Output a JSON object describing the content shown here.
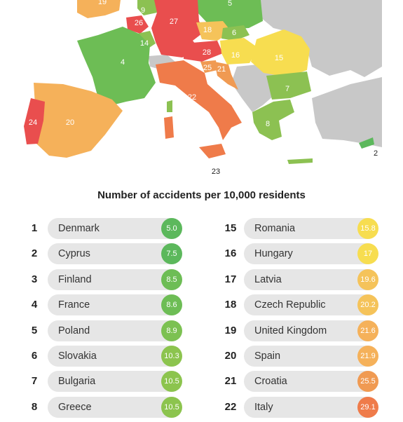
{
  "title": "Number of accidents per 10,000 residents",
  "colors": {
    "best": "#5cb85c",
    "good": "#8cc152",
    "mid": "#f6d743",
    "warn": "#f5b15a",
    "bad": "#ef8c4f",
    "worst": "#e94e4e",
    "nodata": "#c8c8c8",
    "sea": "#ffffff"
  },
  "map": {
    "labels": [
      "19",
      "9",
      "5",
      "27",
      "26",
      "18",
      "6",
      "14",
      "28",
      "16",
      "15",
      "4",
      "25",
      "21",
      "7",
      "22",
      "24",
      "20",
      "8",
      "2",
      "23"
    ]
  },
  "rankings_left": [
    {
      "rank": "1",
      "country": "Denmark",
      "value": "5.0",
      "color": "#5cb85c"
    },
    {
      "rank": "2",
      "country": "Cyprus",
      "value": "7.5",
      "color": "#5cb85c"
    },
    {
      "rank": "3",
      "country": "Finland",
      "value": "8.5",
      "color": "#6dbd55"
    },
    {
      "rank": "4",
      "country": "France",
      "value": "8.6",
      "color": "#6dbd55"
    },
    {
      "rank": "5",
      "country": "Poland",
      "value": "8.9",
      "color": "#7cc152"
    },
    {
      "rank": "6",
      "country": "Slovakia",
      "value": "10.3",
      "color": "#8cc44e"
    },
    {
      "rank": "7",
      "country": "Bulgaria",
      "value": "10.5",
      "color": "#8cc44e"
    },
    {
      "rank": "8",
      "country": "Greece",
      "value": "10.5",
      "color": "#8cc44e"
    }
  ],
  "rankings_right": [
    {
      "rank": "15",
      "country": "Romania",
      "value": "15.8",
      "color": "#f7dd50"
    },
    {
      "rank": "16",
      "country": "Hungary",
      "value": "17",
      "color": "#f7dd50"
    },
    {
      "rank": "17",
      "country": "Latvia",
      "value": "19.6",
      "color": "#f5c35a"
    },
    {
      "rank": "18",
      "country": "Czech Republic",
      "value": "20.2",
      "color": "#f5c35a"
    },
    {
      "rank": "19",
      "country": "United Kingdom",
      "value": "21.6",
      "color": "#f5b15a"
    },
    {
      "rank": "20",
      "country": "Spain",
      "value": "21.9",
      "color": "#f5b15a"
    },
    {
      "rank": "21",
      "country": "Croatia",
      "value": "25.5",
      "color": "#f09a52"
    },
    {
      "rank": "22",
      "country": "Italy",
      "value": "29.1",
      "color": "#ef7b4a"
    }
  ]
}
